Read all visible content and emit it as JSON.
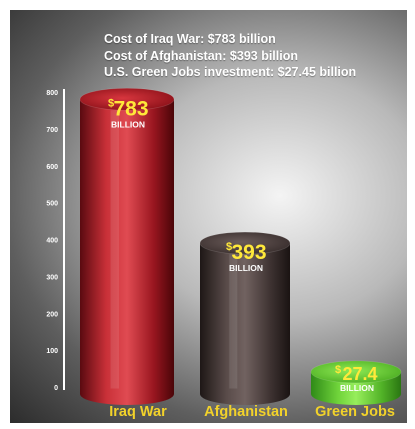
{
  "header": {
    "lines": [
      "Cost of Iraq War: $783 billion",
      "Cost of Afghanistan: $393 billion",
      "U.S. Green Jobs investment: $27.45 billion"
    ]
  },
  "colors": {
    "background": "#3a3a3a",
    "axis": "#ffffff",
    "category_label": "#f2d22a",
    "value_label": "#ffe93a",
    "unit_label": "#ffffff"
  },
  "chart_data": {
    "type": "bar",
    "style": "3d-cylinder",
    "categories": [
      "Iraq War",
      "Afghanistan",
      "Green Jobs"
    ],
    "values": [
      783,
      393,
      27.45
    ],
    "data_labels": [
      {
        "currency": "$",
        "amount": "783",
        "unit": "BILLION"
      },
      {
        "currency": "$",
        "amount": "393",
        "unit": "BILLION"
      },
      {
        "currency": "$",
        "amount": "27.4",
        "unit": "BILLION"
      }
    ],
    "bar_colors": [
      "#b3202a",
      "#4e4140",
      "#6fd33a"
    ],
    "ylim": [
      0,
      800
    ],
    "yticks": [
      0,
      100,
      200,
      300,
      400,
      500,
      600,
      700,
      800
    ],
    "grid": false,
    "legend": "none"
  }
}
